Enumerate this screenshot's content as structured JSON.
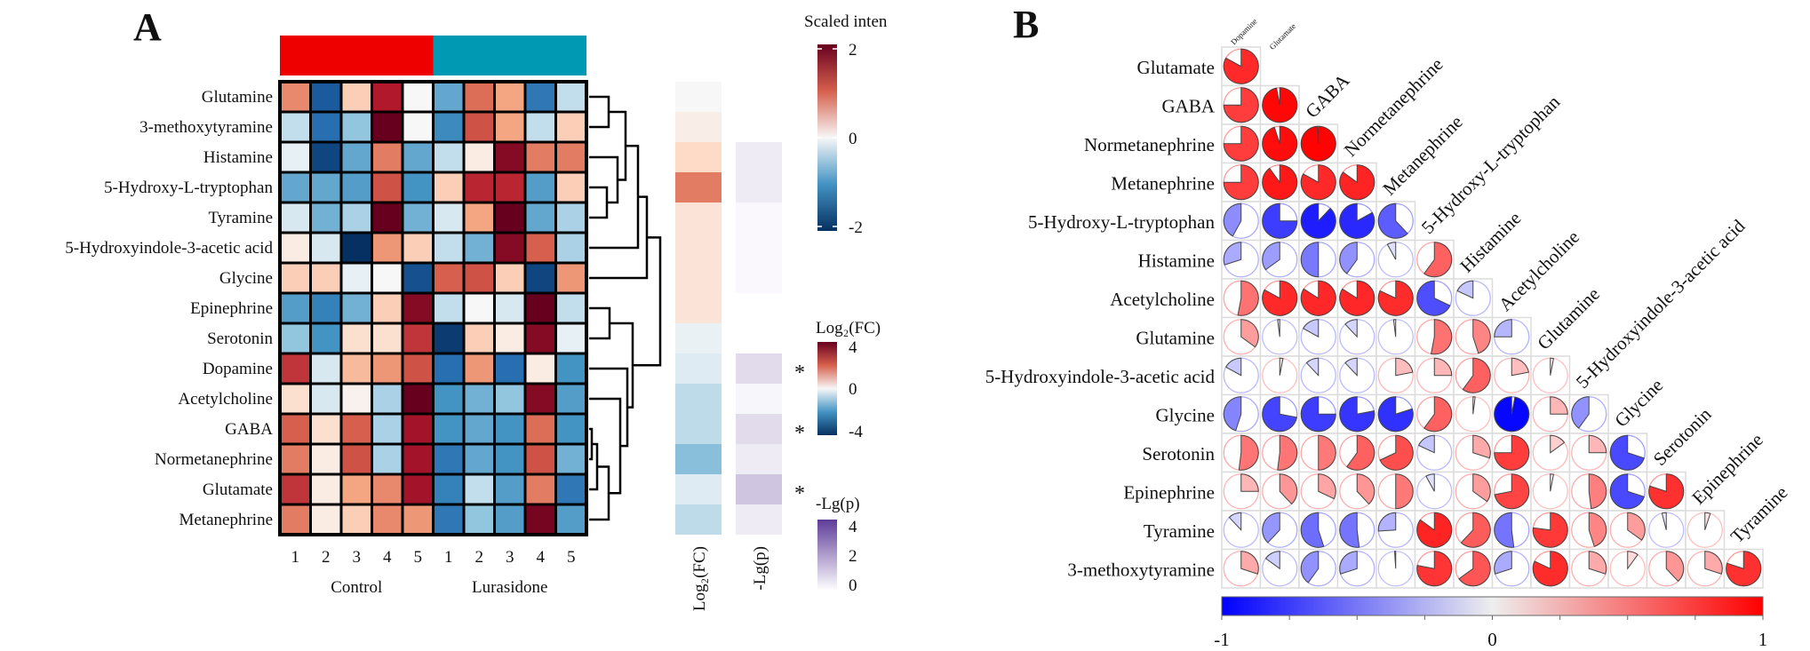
{
  "panel_labels": {
    "a": "A",
    "b": "B"
  },
  "chart_data": [
    {
      "type": "heatmap",
      "title": "",
      "groups": [
        {
          "name": "Control",
          "color": "#ee0000",
          "columns": [
            "1",
            "2",
            "3",
            "4",
            "5"
          ]
        },
        {
          "name": "Lurasidone",
          "color": "#0099b4",
          "columns": [
            "1",
            "2",
            "3",
            "4",
            "5"
          ]
        }
      ],
      "rows": [
        "Glutamine",
        "3-methoxytyramine",
        "Histamine",
        "5-Hydroxy-L-tryptophan",
        "Tyramine",
        "5-Hydroxyindole-3-acetic acid",
        "Glycine",
        "Epinephrine",
        "Serotonin",
        "Dopamine",
        "Acetylcholine",
        "GABA",
        "Normetanephrine",
        "Glutamate",
        "Metanephrine"
      ],
      "values": [
        [
          0.7,
          -1.6,
          0.3,
          1.5,
          0.0,
          -0.8,
          0.9,
          0.5,
          -1.3,
          -0.3
        ],
        [
          -0.3,
          -1.4,
          -0.5,
          2.2,
          0.0,
          -1.1,
          1.1,
          0.5,
          -0.3,
          0.3
        ],
        [
          -0.1,
          -1.8,
          -0.8,
          0.8,
          -0.8,
          -0.3,
          0.1,
          1.8,
          0.8,
          0.8
        ],
        [
          -0.8,
          -0.8,
          -0.9,
          1.1,
          -1.0,
          0.3,
          1.4,
          1.4,
          -0.9,
          0.3
        ],
        [
          -0.2,
          -0.7,
          -0.4,
          2.0,
          -0.7,
          -0.2,
          0.5,
          2.0,
          -0.8,
          -0.4
        ],
        [
          0.1,
          -0.2,
          -2.2,
          0.6,
          0.3,
          -0.3,
          -0.7,
          1.8,
          1.0,
          -0.4
        ],
        [
          0.3,
          0.3,
          -0.1,
          0.0,
          -1.7,
          1.0,
          1.1,
          0.3,
          -1.8,
          0.6
        ],
        [
          -0.9,
          -1.2,
          -0.7,
          0.3,
          1.8,
          -0.3,
          0.0,
          -0.2,
          2.0,
          -0.3
        ],
        [
          -0.5,
          -1.0,
          0.2,
          0.2,
          1.3,
          -1.9,
          0.3,
          0.1,
          1.8,
          -0.1
        ],
        [
          1.3,
          -0.2,
          0.4,
          0.6,
          1.1,
          -1.4,
          0.6,
          -1.4,
          0.1,
          -1.0
        ],
        [
          0.2,
          -0.2,
          0.05,
          -0.4,
          2.2,
          -1.0,
          -0.7,
          -0.5,
          1.8,
          -0.9
        ],
        [
          1.0,
          0.2,
          1.0,
          -0.4,
          1.6,
          -1.0,
          -0.8,
          -1.0,
          0.9,
          -1.0
        ],
        [
          0.8,
          0.1,
          1.1,
          -0.4,
          1.6,
          -1.3,
          -0.8,
          -1.0,
          1.1,
          -0.7
        ],
        [
          1.3,
          0.1,
          0.5,
          0.7,
          1.6,
          -1.2,
          -0.3,
          -0.9,
          0.8,
          -1.3
        ],
        [
          0.8,
          0.1,
          0.3,
          0.7,
          0.6,
          -1.3,
          -0.5,
          -0.9,
          1.9,
          -0.9
        ]
      ],
      "scale_title": "Scaled inten",
      "scale_range": [
        -2,
        2
      ],
      "scale_ticks": [
        "2",
        "0",
        "-2"
      ],
      "annotation_columns": {
        "log2fc": {
          "label": "Log₂(FC)",
          "values": [
            0.0,
            0.1,
            0.3,
            1.0,
            0.2,
            0.2,
            0.2,
            0.2,
            -0.1,
            -0.2,
            -0.4,
            -0.4,
            -0.7,
            -0.2,
            -0.4
          ],
          "range": [
            -4,
            4
          ],
          "legend_title": "Log₂(FC)",
          "ticks": [
            "4",
            "0",
            "-4"
          ]
        },
        "neglogp": {
          "label": "-Lg(p)",
          "values": [
            null,
            null,
            0.3,
            0.3,
            0.05,
            0.05,
            0.05,
            null,
            null,
            0.6,
            0.1,
            0.6,
            0.3,
            1.0,
            0.3
          ],
          "range": [
            0,
            4
          ],
          "legend_title": "-Lg(p)",
          "ticks": [
            "4",
            "2",
            "0"
          ],
          "color": "#5e3c99"
        },
        "significance_marks": [
          "",
          "",
          "",
          "",
          "",
          "",
          "",
          "",
          "",
          "*",
          "",
          "*",
          "",
          "*",
          ""
        ]
      }
    },
    {
      "type": "correlation-pie",
      "variables": [
        "Dopamine",
        "Glutamate",
        "GABA",
        "Normetanephrine",
        "Metanephrine",
        "5-Hydroxy-L-tryptophan",
        "Histamine",
        "Acetylcholine",
        "Glutamine",
        "5-Hydroxyindole-3-acetic acid",
        "Glycine",
        "Serotonin",
        "Epinephrine",
        "Tyramine",
        "3-methoxytyramine"
      ],
      "lower_triangle": [
        [
          0.83
        ],
        [
          0.75,
          0.97
        ],
        [
          0.75,
          0.95,
          0.99
        ],
        [
          0.75,
          0.9,
          0.83,
          0.85
        ],
        [
          -0.42,
          -0.75,
          -0.88,
          -0.83,
          -0.62
        ],
        [
          -0.3,
          -0.35,
          -0.5,
          -0.4,
          -0.08,
          0.6
        ],
        [
          0.53,
          0.83,
          0.84,
          0.84,
          0.82,
          -0.68,
          -0.18
        ],
        [
          0.35,
          -0.02,
          -0.17,
          -0.12,
          -0.02,
          0.53,
          0.45,
          -0.25
        ],
        [
          -0.17,
          0.03,
          -0.12,
          -0.12,
          0.22,
          0.25,
          0.6,
          0.22,
          0.03
        ],
        [
          -0.45,
          -0.72,
          -0.75,
          -0.78,
          -0.8,
          0.6,
          0.02,
          -0.97,
          0.25,
          -0.4
        ],
        [
          0.52,
          0.52,
          0.5,
          0.6,
          0.68,
          -0.18,
          0.3,
          0.75,
          0.15,
          0.25,
          -0.7
        ],
        [
          0.25,
          0.38,
          0.32,
          0.38,
          0.5,
          -0.08,
          0.35,
          0.72,
          0.03,
          0.48,
          -0.7,
          0.8
        ],
        [
          -0.12,
          -0.38,
          -0.55,
          -0.52,
          -0.26,
          0.85,
          0.62,
          -0.52,
          0.77,
          0.45,
          0.35,
          -0.04,
          0.05
        ],
        [
          0.3,
          -0.15,
          -0.4,
          -0.3,
          -0.01,
          0.78,
          0.65,
          -0.3,
          0.82,
          0.3,
          0.1,
          0.38,
          0.3,
          0.8
        ]
      ],
      "colorbar": {
        "range": [
          -1,
          1
        ],
        "tick_labels": [
          "-1",
          "0",
          "1"
        ],
        "low_color": "#0000ff",
        "mid_color": "#eeeeee",
        "high_color": "#ff0000"
      }
    }
  ]
}
